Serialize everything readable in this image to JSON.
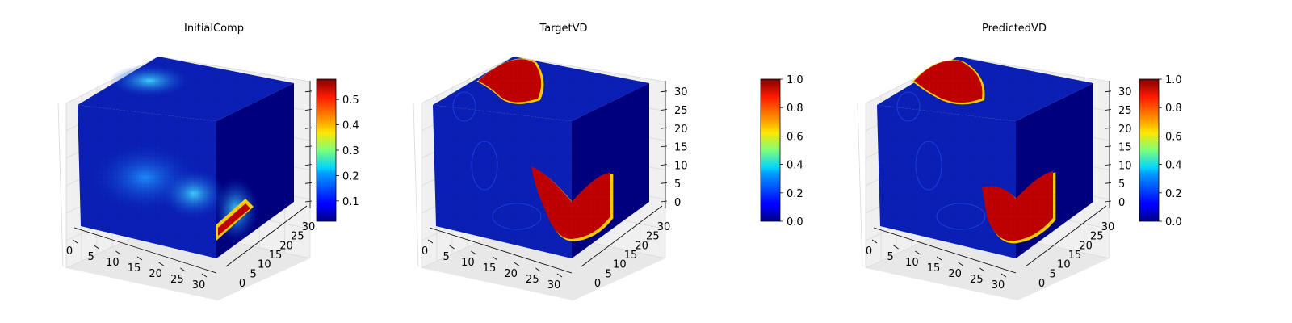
{
  "colors": {
    "background": "#ffffff",
    "cube_dark": "#00007f",
    "cube_mid": "#0a1fb5",
    "pane": "#f0f0f0",
    "grid": "#d9d9d9",
    "hot": "#c00000"
  },
  "colormap": "jet",
  "chart_data": [
    {
      "type": "heatmap",
      "subtype": "3d-voxel",
      "title": "InitialComp",
      "xticks": [
        "0",
        "5",
        "10",
        "15",
        "20",
        "25",
        "30"
      ],
      "yticks": [
        "0",
        "5",
        "10",
        "15",
        "20",
        "25",
        "30"
      ],
      "zticks": [],
      "xlim": [
        0,
        32
      ],
      "ylim": [
        0,
        32
      ],
      "zlim": [
        0,
        32
      ],
      "colorbar": {
        "ticks": [
          "0.1",
          "0.2",
          "0.3",
          "0.4",
          "0.5"
        ],
        "range": [
          0.02,
          0.58
        ]
      },
      "grid": true
    },
    {
      "type": "heatmap",
      "subtype": "3d-voxel",
      "title": "TargetVD",
      "xticks": [
        "0",
        "5",
        "10",
        "15",
        "20",
        "25",
        "30"
      ],
      "yticks": [
        "0",
        "5",
        "10",
        "15",
        "20",
        "25",
        "30"
      ],
      "zticks": [
        "0",
        "5",
        "10",
        "15",
        "20",
        "25",
        "30"
      ],
      "xlim": [
        0,
        32
      ],
      "ylim": [
        0,
        32
      ],
      "zlim": [
        0,
        32
      ],
      "colorbar": {
        "ticks": [
          "0.0",
          "0.2",
          "0.4",
          "0.6",
          "0.8",
          "1.0"
        ],
        "range": [
          0.0,
          1.0
        ]
      },
      "grid": true
    },
    {
      "type": "heatmap",
      "subtype": "3d-voxel",
      "title": "PredictedVD",
      "xticks": [
        "0",
        "5",
        "10",
        "15",
        "20",
        "25",
        "30"
      ],
      "yticks": [
        "0",
        "5",
        "10",
        "15",
        "20",
        "25",
        "30"
      ],
      "zticks": [
        "0",
        "5",
        "10",
        "15",
        "20",
        "25",
        "30"
      ],
      "xlim": [
        0,
        32
      ],
      "ylim": [
        0,
        32
      ],
      "zlim": [
        0,
        32
      ],
      "colorbar": {
        "ticks": [
          "0.0",
          "0.2",
          "0.4",
          "0.6",
          "0.8",
          "1.0"
        ],
        "range": [
          0.0,
          1.0
        ]
      },
      "grid": true
    }
  ]
}
